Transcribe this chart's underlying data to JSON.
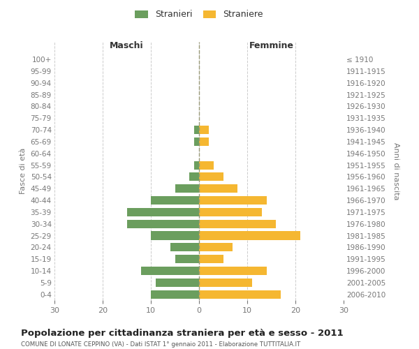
{
  "age_groups_bottom_to_top": [
    "0-4",
    "5-9",
    "10-14",
    "15-19",
    "20-24",
    "25-29",
    "30-34",
    "35-39",
    "40-44",
    "45-49",
    "50-54",
    "55-59",
    "60-64",
    "65-69",
    "70-74",
    "75-79",
    "80-84",
    "85-89",
    "90-94",
    "95-99",
    "100+"
  ],
  "birth_years_bottom_to_top": [
    "2006-2010",
    "2001-2005",
    "1996-2000",
    "1991-1995",
    "1986-1990",
    "1981-1985",
    "1976-1980",
    "1971-1975",
    "1966-1970",
    "1961-1965",
    "1956-1960",
    "1951-1955",
    "1946-1950",
    "1941-1945",
    "1936-1940",
    "1931-1935",
    "1926-1930",
    "1921-1925",
    "1916-1920",
    "1911-1915",
    "≤ 1910"
  ],
  "maschi_bottom_to_top": [
    10,
    9,
    12,
    5,
    6,
    10,
    15,
    15,
    10,
    5,
    2,
    1,
    0,
    1,
    1,
    0,
    0,
    0,
    0,
    0,
    0
  ],
  "femmine_bottom_to_top": [
    17,
    11,
    14,
    5,
    7,
    21,
    16,
    13,
    14,
    8,
    5,
    3,
    0,
    2,
    2,
    0,
    0,
    0,
    0,
    0,
    0
  ],
  "color_maschi": "#6b9e5e",
  "color_femmine": "#f5b731",
  "title": "Popolazione per cittadinanza straniera per età e sesso - 2011",
  "subtitle": "COMUNE DI LONATE CEPPINO (VA) - Dati ISTAT 1° gennaio 2011 - Elaborazione TUTTITALIA.IT",
  "ylabel_left": "Fasce di età",
  "ylabel_right": "Anni di nascita",
  "label_maschi": "Maschi",
  "label_femmine": "Femmine",
  "legend_stranieri": "Stranieri",
  "legend_straniere": "Straniere",
  "xlim": 30,
  "background_color": "#ffffff",
  "grid_color": "#cccccc"
}
